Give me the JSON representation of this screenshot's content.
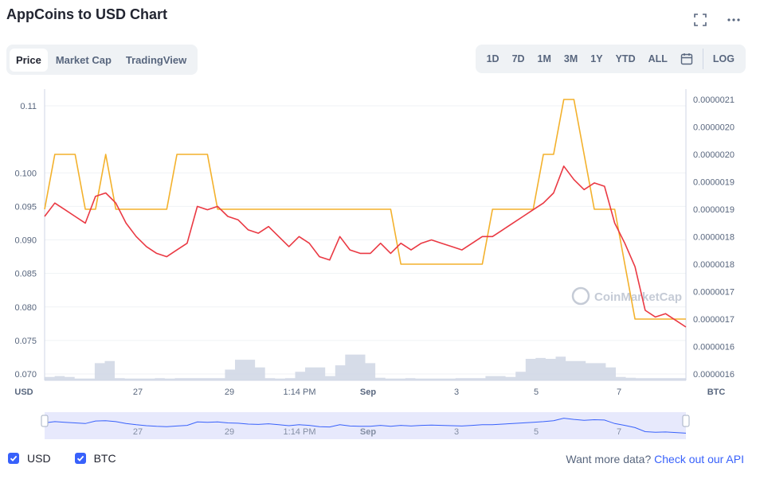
{
  "title": "AppCoins to USD Chart",
  "tabs": [
    "Price",
    "Market Cap",
    "TradingView"
  ],
  "active_tab": "Price",
  "range_tabs": [
    "1D",
    "7D",
    "1M",
    "3M",
    "1Y",
    "YTD",
    "ALL"
  ],
  "log_label": "LOG",
  "icons": {
    "fullscreen": "fullscreen-icon",
    "more": "more-dots-icon",
    "calendar": "calendar-icon",
    "check": "check-icon"
  },
  "legend": {
    "usd": "USD",
    "btc": "BTC"
  },
  "api_text": "Want more data?",
  "api_link": "Check out our API",
  "watermark": "CoinMarketCap",
  "colors": {
    "usd_line": "#ea3943",
    "btc_line": "#f3b12c",
    "volume": "#cfd6e4",
    "navigator_fill": "#e7e9fc",
    "navigator_line": "#3861fb",
    "accent": "#3861fb"
  },
  "chart_data": {
    "type": "line",
    "x_ticks": [
      "27",
      "29",
      "1:14 PM",
      "Sep",
      "3",
      "5",
      "7"
    ],
    "left_axis": {
      "label": "USD",
      "ticks": [
        "0.070",
        "0.075",
        "0.080",
        "0.085",
        "0.090",
        "0.095",
        "0.100",
        "0.11"
      ],
      "range": [
        0.07,
        0.11
      ]
    },
    "right_axis": {
      "label": "BTC",
      "ticks": [
        "0.0000016",
        "0.0000016",
        "0.0000017",
        "0.0000017",
        "0.0000018",
        "0.0000018",
        "0.0000019",
        "0.0000019",
        "0.0000020",
        "0.0000020",
        "0.0000021"
      ]
    },
    "series": [
      {
        "name": "USD",
        "axis": "left",
        "values": [
          0.0935,
          0.0955,
          0.0945,
          0.0935,
          0.0925,
          0.0965,
          0.097,
          0.0955,
          0.0925,
          0.0905,
          0.089,
          0.088,
          0.0875,
          0.0885,
          0.0895,
          0.095,
          0.0945,
          0.095,
          0.0935,
          0.093,
          0.0915,
          0.091,
          0.092,
          0.0905,
          0.089,
          0.0905,
          0.0895,
          0.0875,
          0.087,
          0.0905,
          0.0885,
          0.088,
          0.088,
          0.0895,
          0.088,
          0.0895,
          0.0885,
          0.0895,
          0.09,
          0.0895,
          0.089,
          0.0885,
          0.0895,
          0.0905,
          0.0905,
          0.0915,
          0.0925,
          0.0935,
          0.0945,
          0.0955,
          0.097,
          0.101,
          0.099,
          0.0975,
          0.0985,
          0.098,
          0.0925,
          0.0895,
          0.086,
          0.0795,
          0.0785,
          0.079,
          0.078,
          0.077
        ]
      },
      {
        "name": "BTC",
        "axis": "right",
        "values": [
          1.9e-06,
          2e-06,
          2e-06,
          2e-06,
          1.9e-06,
          1.9e-06,
          2e-06,
          1.9e-06,
          1.9e-06,
          1.9e-06,
          1.9e-06,
          1.9e-06,
          1.9e-06,
          2e-06,
          2e-06,
          2e-06,
          2e-06,
          1.9e-06,
          1.9e-06,
          1.9e-06,
          1.9e-06,
          1.9e-06,
          1.9e-06,
          1.9e-06,
          1.9e-06,
          1.9e-06,
          1.9e-06,
          1.9e-06,
          1.9e-06,
          1.9e-06,
          1.9e-06,
          1.9e-06,
          1.9e-06,
          1.9e-06,
          1.9e-06,
          1.8e-06,
          1.8e-06,
          1.8e-06,
          1.8e-06,
          1.8e-06,
          1.8e-06,
          1.8e-06,
          1.8e-06,
          1.8e-06,
          1.9e-06,
          1.9e-06,
          1.9e-06,
          1.9e-06,
          1.9e-06,
          2e-06,
          2e-06,
          2.1e-06,
          2.1e-06,
          2e-06,
          1.9e-06,
          1.9e-06,
          1.9e-06,
          1.8e-06,
          1.7e-06,
          1.7e-06,
          1.7e-06,
          1.7e-06,
          1.7e-06,
          1.7e-06
        ]
      }
    ],
    "volume": [
      0.08,
      0.1,
      0.08,
      0.04,
      0.04,
      0.4,
      0.45,
      0.05,
      0.04,
      0.04,
      0.04,
      0.05,
      0.04,
      0.05,
      0.05,
      0.05,
      0.05,
      0.05,
      0.25,
      0.48,
      0.48,
      0.3,
      0.05,
      0.04,
      0.05,
      0.2,
      0.3,
      0.3,
      0.1,
      0.35,
      0.6,
      0.6,
      0.4,
      0.06,
      0.04,
      0.04,
      0.05,
      0.04,
      0.04,
      0.04,
      0.04,
      0.05,
      0.05,
      0.05,
      0.1,
      0.1,
      0.08,
      0.2,
      0.5,
      0.52,
      0.5,
      0.55,
      0.45,
      0.45,
      0.4,
      0.4,
      0.3,
      0.08,
      0.06,
      0.05,
      0.05,
      0.05,
      0.05,
      0.05
    ]
  }
}
